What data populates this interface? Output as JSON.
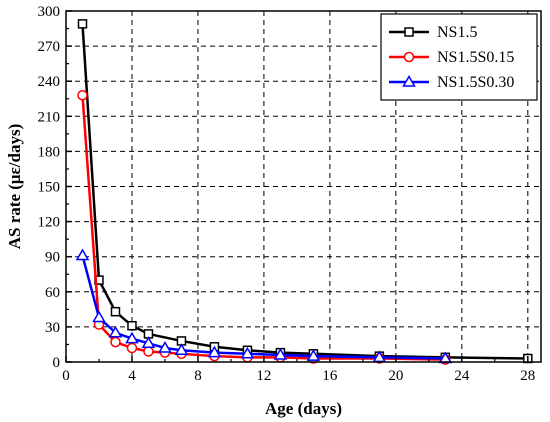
{
  "chart_data": {
    "type": "line",
    "xlabel": "Age (days)",
    "ylabel": "AS rate (με/days)",
    "xlim": [
      0,
      28.8
    ],
    "ylim": [
      0,
      300
    ],
    "xticks": [
      "0",
      "4",
      "8",
      "12",
      "16",
      "20",
      "24",
      "28"
    ],
    "yticks": [
      "0",
      "30",
      "60",
      "90",
      "120",
      "150",
      "180",
      "210",
      "240",
      "270",
      "300"
    ],
    "grid": true,
    "grid_style": "dashed",
    "legend_position": "top-right",
    "series": [
      {
        "name": "NS1.5",
        "color": "#000000",
        "marker": "square",
        "x": [
          1,
          2,
          3,
          4,
          5,
          7,
          9,
          11,
          13,
          15,
          19,
          23,
          28
        ],
        "y": [
          289,
          70,
          43,
          31,
          24,
          18,
          13,
          10,
          8,
          7,
          5,
          4,
          3
        ]
      },
      {
        "name": "NS1.5S0.15",
        "color": "#ff0000",
        "marker": "circle",
        "x": [
          1,
          2,
          3,
          4,
          5,
          6,
          7,
          9,
          11,
          13,
          15,
          19,
          23
        ],
        "y": [
          228,
          32,
          17,
          12,
          9,
          8,
          7,
          5,
          4,
          4,
          3,
          3,
          2
        ]
      },
      {
        "name": "NS1.5S0.30",
        "color": "#0000ff",
        "marker": "triangle",
        "x": [
          1,
          2,
          3,
          4,
          5,
          6,
          7,
          9,
          11,
          13,
          15,
          19,
          23
        ],
        "y": [
          91,
          38,
          25,
          20,
          16,
          12,
          10,
          8,
          7,
          6,
          5,
          4,
          3
        ]
      }
    ]
  }
}
